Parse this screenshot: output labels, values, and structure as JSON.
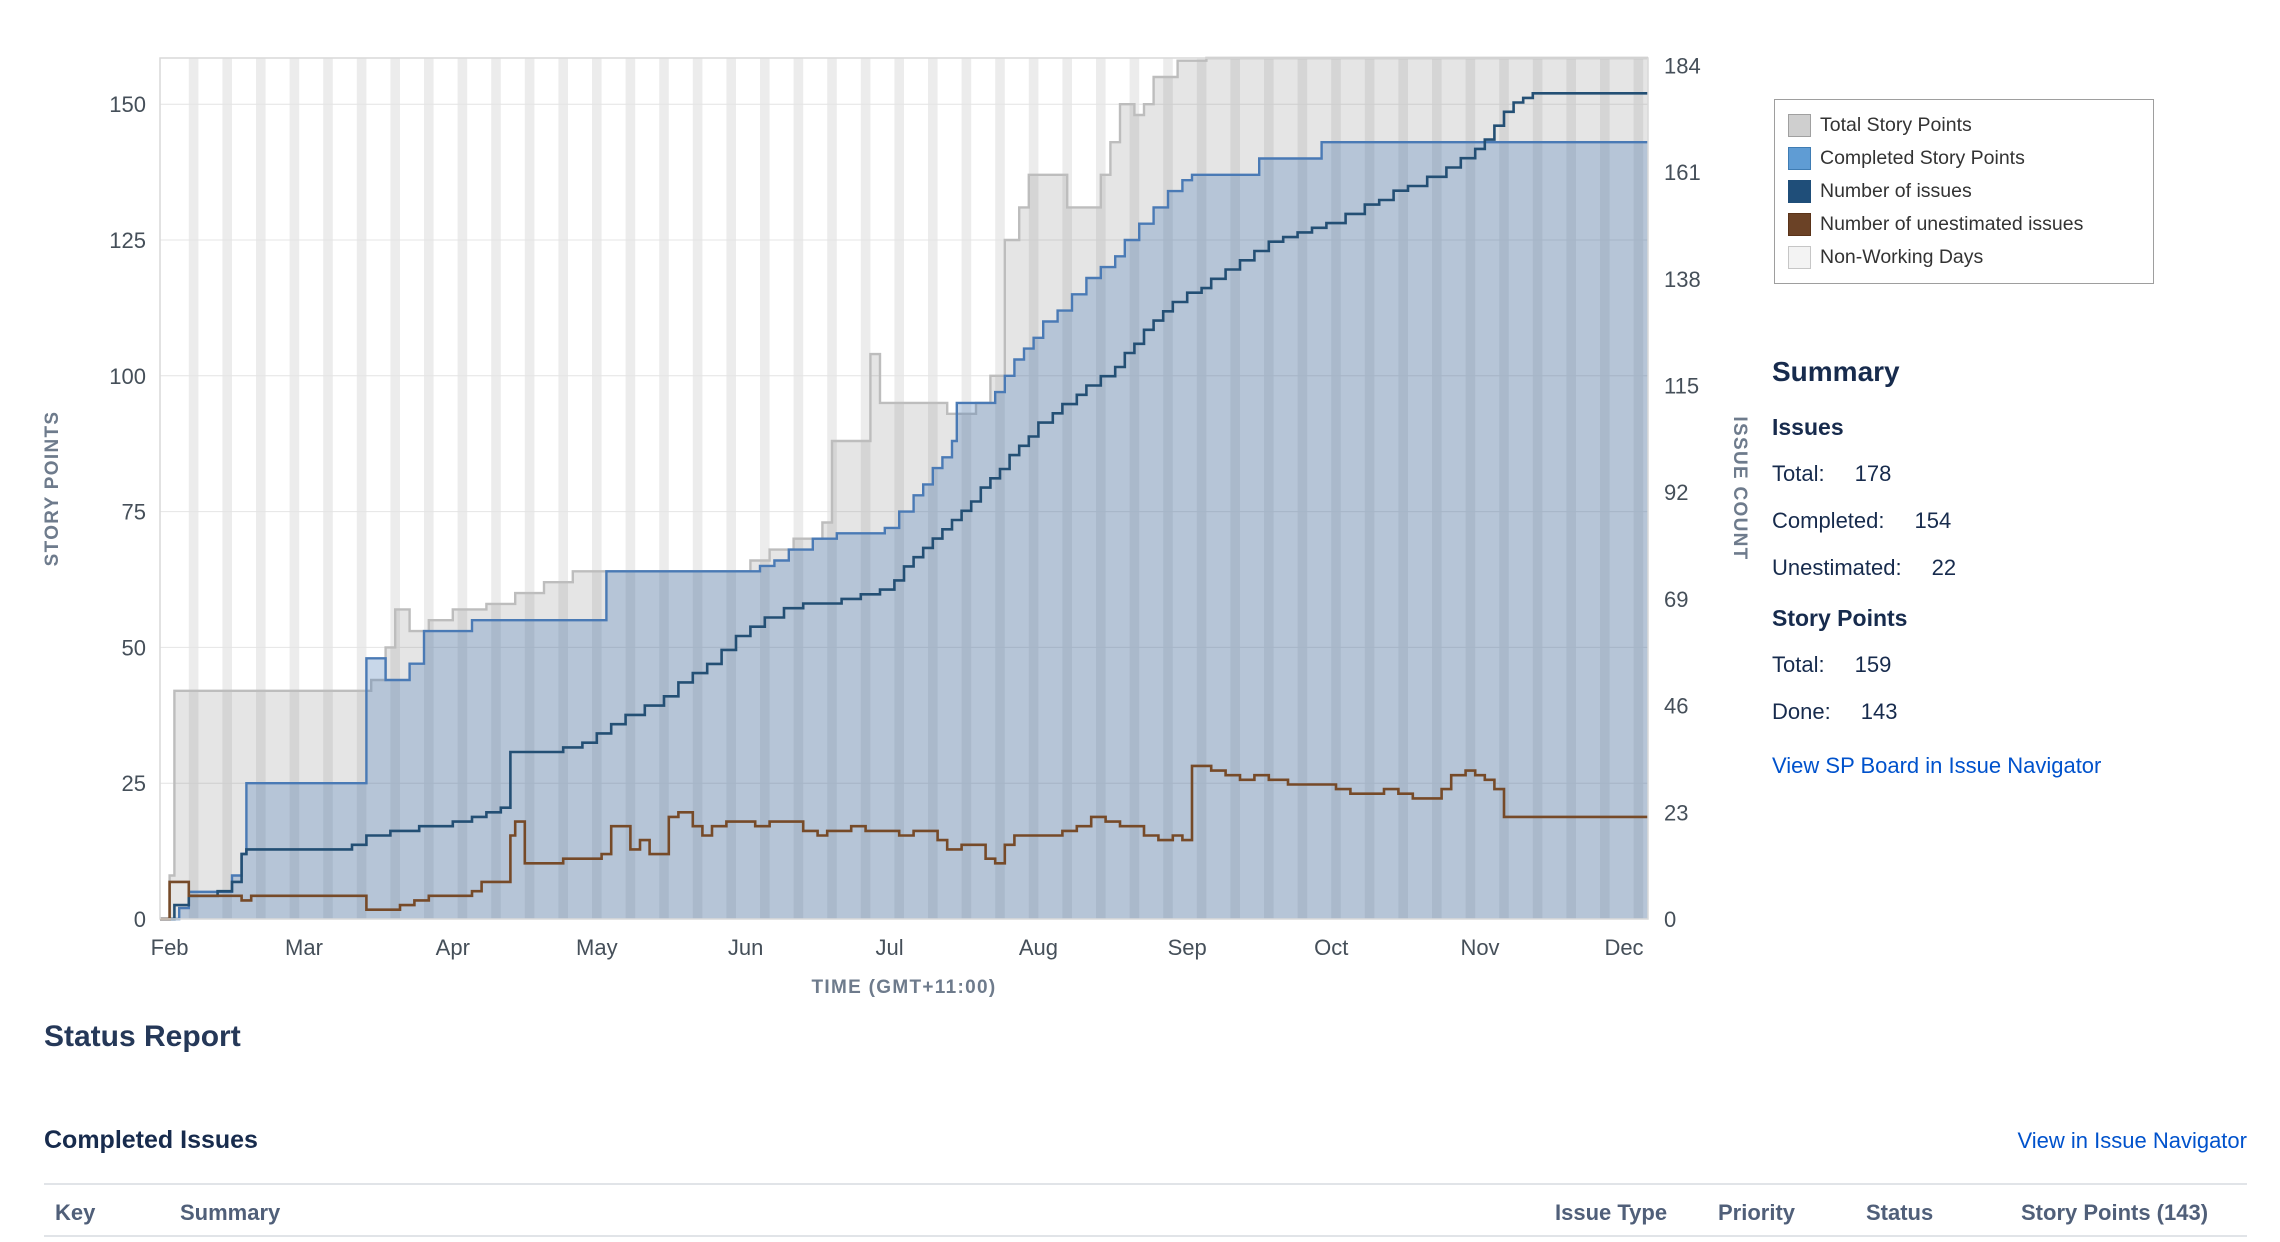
{
  "page": {
    "background": "#ffffff"
  },
  "legend": {
    "items": [
      {
        "label": "Total Story Points",
        "color": "#cfcfcf",
        "border": "#a0a0a0"
      },
      {
        "label": "Completed Story Points",
        "color": "#5f9cd4",
        "border": "#3f7cb3"
      },
      {
        "label": "Number of issues",
        "color": "#1f4e79",
        "border": "#1f4e79"
      },
      {
        "label": "Number of unestimated issues",
        "color": "#6b4226",
        "border": "#5a3319"
      },
      {
        "label": "Non-Working Days",
        "color": "#f3f3f3",
        "border": "#c6c6c6"
      }
    ]
  },
  "summary": {
    "title": "Summary",
    "issues": {
      "heading": "Issues",
      "rows": [
        {
          "label": "Total:",
          "value": "178"
        },
        {
          "label": "Completed:",
          "value": "154"
        },
        {
          "label": "Unestimated:",
          "value": "22"
        }
      ]
    },
    "story_points": {
      "heading": "Story Points",
      "rows": [
        {
          "label": "Total:",
          "value": "159"
        },
        {
          "label": "Done:",
          "value": "143"
        }
      ]
    },
    "link": "View SP Board in Issue Navigator"
  },
  "status_report": {
    "title": "Status Report"
  },
  "completed_issues": {
    "heading": "Completed Issues",
    "link": "View in Issue Navigator",
    "columns": [
      "Key",
      "Summary",
      "Issue Type",
      "Priority",
      "Status",
      "Story Points (143)"
    ]
  },
  "chart_data": {
    "type": "area",
    "title": "",
    "xlabel": "TIME (GMT+11:00)",
    "ylabel_left": "STORY POINTS",
    "ylabel_right": "ISSUE COUNT",
    "x_unit": "days_from_feb_1",
    "x_domain": [
      -2,
      308
    ],
    "y_left_domain": [
      0,
      158.5
    ],
    "y_right_domain": [
      0,
      185.6
    ],
    "y_left_ticks": [
      0,
      25,
      50,
      75,
      100,
      125,
      150
    ],
    "y_right_ticks": [
      0,
      23,
      46,
      69,
      92,
      115,
      138,
      161,
      184
    ],
    "x_ticks": [
      {
        "d": 0,
        "label": "Feb"
      },
      {
        "d": 28,
        "label": "Mar"
      },
      {
        "d": 59,
        "label": "Apr"
      },
      {
        "d": 89,
        "label": "May"
      },
      {
        "d": 120,
        "label": "Jun"
      },
      {
        "d": 150,
        "label": "Jul"
      },
      {
        "d": 181,
        "label": "Aug"
      },
      {
        "d": 212,
        "label": "Sep"
      },
      {
        "d": 242,
        "label": "Oct"
      },
      {
        "d": 273,
        "label": "Nov"
      },
      {
        "d": 303,
        "label": "Dec"
      }
    ],
    "grid": true,
    "legend_position": "top-right",
    "non_working_days": {
      "first_start": 4,
      "period": 7,
      "width": 2,
      "color": "#ececec"
    },
    "series": [
      {
        "name": "Total Story Points",
        "axis": "left",
        "style": "area",
        "color": "#bdbdbd",
        "fill": "rgba(110,110,110,0.18)",
        "points": [
          [
            -2,
            0
          ],
          [
            0,
            8
          ],
          [
            1,
            42
          ],
          [
            40,
            42
          ],
          [
            42,
            44
          ],
          [
            45,
            50
          ],
          [
            47,
            57
          ],
          [
            50,
            53
          ],
          [
            54,
            55
          ],
          [
            59,
            57
          ],
          [
            66,
            58
          ],
          [
            72,
            60
          ],
          [
            78,
            62
          ],
          [
            84,
            64
          ],
          [
            118,
            64
          ],
          [
            121,
            66
          ],
          [
            125,
            68
          ],
          [
            130,
            70
          ],
          [
            136,
            73
          ],
          [
            138,
            88
          ],
          [
            145,
            88
          ],
          [
            146,
            104
          ],
          [
            148,
            95
          ],
          [
            158,
            95
          ],
          [
            162,
            93
          ],
          [
            168,
            95
          ],
          [
            171,
            100
          ],
          [
            174,
            125
          ],
          [
            177,
            131
          ],
          [
            179,
            137
          ],
          [
            186,
            137
          ],
          [
            187,
            131
          ],
          [
            193,
            131
          ],
          [
            194,
            137
          ],
          [
            196,
            143
          ],
          [
            198,
            150
          ],
          [
            201,
            148
          ],
          [
            203,
            150
          ],
          [
            205,
            155
          ],
          [
            210,
            158
          ],
          [
            216,
            159
          ],
          [
            308,
            159
          ]
        ]
      },
      {
        "name": "Completed Story Points",
        "axis": "left",
        "style": "area",
        "color": "#4a7ab5",
        "fill": "rgba(74,122,181,0.30)",
        "points": [
          [
            -2,
            0
          ],
          [
            2,
            2
          ],
          [
            4,
            5
          ],
          [
            11,
            5
          ],
          [
            13,
            8
          ],
          [
            15,
            12
          ],
          [
            16,
            25
          ],
          [
            40,
            25
          ],
          [
            41,
            48
          ],
          [
            44,
            48
          ],
          [
            45,
            44
          ],
          [
            49,
            44
          ],
          [
            50,
            47
          ],
          [
            53,
            53
          ],
          [
            60,
            53
          ],
          [
            63,
            55
          ],
          [
            88,
            55
          ],
          [
            91,
            64
          ],
          [
            119,
            64
          ],
          [
            123,
            65
          ],
          [
            126,
            66
          ],
          [
            129,
            68
          ],
          [
            134,
            70
          ],
          [
            139,
            71
          ],
          [
            149,
            72
          ],
          [
            152,
            75
          ],
          [
            155,
            78
          ],
          [
            157,
            80
          ],
          [
            159,
            83
          ],
          [
            161,
            85
          ],
          [
            163,
            88
          ],
          [
            164,
            95
          ],
          [
            170,
            95
          ],
          [
            172,
            97
          ],
          [
            174,
            100
          ],
          [
            176,
            103
          ],
          [
            178,
            105
          ],
          [
            180,
            107
          ],
          [
            182,
            110
          ],
          [
            185,
            112
          ],
          [
            188,
            115
          ],
          [
            191,
            118
          ],
          [
            194,
            120
          ],
          [
            197,
            122
          ],
          [
            199,
            125
          ],
          [
            202,
            128
          ],
          [
            205,
            131
          ],
          [
            208,
            134
          ],
          [
            211,
            136
          ],
          [
            213,
            137
          ],
          [
            226,
            137
          ],
          [
            227,
            140
          ],
          [
            239,
            140
          ],
          [
            240,
            143
          ],
          [
            308,
            143
          ]
        ]
      },
      {
        "name": "Number of issues",
        "axis": "right",
        "style": "line",
        "color": "#234f74",
        "points": [
          [
            -2,
            0
          ],
          [
            1,
            3
          ],
          [
            4,
            5
          ],
          [
            10,
            6
          ],
          [
            13,
            8
          ],
          [
            15,
            14
          ],
          [
            16,
            15
          ],
          [
            38,
            16
          ],
          [
            41,
            18
          ],
          [
            46,
            19
          ],
          [
            52,
            20
          ],
          [
            59,
            21
          ],
          [
            63,
            22
          ],
          [
            66,
            23
          ],
          [
            69,
            24
          ],
          [
            71,
            36
          ],
          [
            79,
            36
          ],
          [
            82,
            37
          ],
          [
            86,
            38
          ],
          [
            89,
            40
          ],
          [
            92,
            42
          ],
          [
            95,
            44
          ],
          [
            99,
            46
          ],
          [
            103,
            48
          ],
          [
            106,
            51
          ],
          [
            109,
            53
          ],
          [
            112,
            55
          ],
          [
            115,
            58
          ],
          [
            118,
            61
          ],
          [
            121,
            63
          ],
          [
            124,
            65
          ],
          [
            128,
            67
          ],
          [
            132,
            68
          ],
          [
            140,
            69
          ],
          [
            144,
            70
          ],
          [
            148,
            71
          ],
          [
            151,
            73
          ],
          [
            153,
            76
          ],
          [
            155,
            78
          ],
          [
            157,
            80
          ],
          [
            159,
            82
          ],
          [
            161,
            84
          ],
          [
            163,
            86
          ],
          [
            165,
            88
          ],
          [
            167,
            90
          ],
          [
            169,
            93
          ],
          [
            171,
            95
          ],
          [
            173,
            97
          ],
          [
            175,
            100
          ],
          [
            177,
            102
          ],
          [
            179,
            104
          ],
          [
            181,
            107
          ],
          [
            184,
            109
          ],
          [
            186,
            111
          ],
          [
            189,
            113
          ],
          [
            191,
            115
          ],
          [
            194,
            117
          ],
          [
            197,
            119
          ],
          [
            199,
            122
          ],
          [
            201,
            124
          ],
          [
            203,
            127
          ],
          [
            205,
            129
          ],
          [
            207,
            131
          ],
          [
            209,
            133
          ],
          [
            212,
            135
          ],
          [
            215,
            136
          ],
          [
            217,
            138
          ],
          [
            220,
            140
          ],
          [
            223,
            142
          ],
          [
            226,
            144
          ],
          [
            229,
            146
          ],
          [
            232,
            147
          ],
          [
            235,
            148
          ],
          [
            238,
            149
          ],
          [
            241,
            150
          ],
          [
            245,
            152
          ],
          [
            249,
            154
          ],
          [
            252,
            155
          ],
          [
            255,
            157
          ],
          [
            258,
            158
          ],
          [
            262,
            160
          ],
          [
            266,
            162
          ],
          [
            269,
            164
          ],
          [
            272,
            166
          ],
          [
            274,
            168
          ],
          [
            276,
            171
          ],
          [
            278,
            174
          ],
          [
            280,
            176
          ],
          [
            282,
            177
          ],
          [
            284,
            178
          ],
          [
            308,
            178
          ]
        ]
      },
      {
        "name": "Number of unestimated issues",
        "axis": "right",
        "style": "line",
        "color": "#764a28",
        "points": [
          [
            -2,
            0
          ],
          [
            0,
            8
          ],
          [
            3,
            8
          ],
          [
            4,
            5
          ],
          [
            12,
            5
          ],
          [
            15,
            4
          ],
          [
            17,
            5
          ],
          [
            40,
            5
          ],
          [
            41,
            2
          ],
          [
            46,
            2
          ],
          [
            48,
            3
          ],
          [
            51,
            4
          ],
          [
            54,
            5
          ],
          [
            60,
            5
          ],
          [
            63,
            6
          ],
          [
            65,
            8
          ],
          [
            70,
            8
          ],
          [
            71,
            18
          ],
          [
            72,
            21
          ],
          [
            74,
            12
          ],
          [
            79,
            12
          ],
          [
            82,
            13
          ],
          [
            88,
            13
          ],
          [
            90,
            14
          ],
          [
            92,
            20
          ],
          [
            95,
            20
          ],
          [
            96,
            15
          ],
          [
            98,
            17
          ],
          [
            100,
            14
          ],
          [
            103,
            14
          ],
          [
            104,
            22
          ],
          [
            106,
            23
          ],
          [
            109,
            20
          ],
          [
            111,
            18
          ],
          [
            113,
            20
          ],
          [
            116,
            21
          ],
          [
            122,
            20
          ],
          [
            125,
            21
          ],
          [
            130,
            21
          ],
          [
            132,
            19
          ],
          [
            135,
            18
          ],
          [
            137,
            19
          ],
          [
            142,
            20
          ],
          [
            145,
            19
          ],
          [
            152,
            18
          ],
          [
            155,
            19
          ],
          [
            160,
            17
          ],
          [
            162,
            15
          ],
          [
            165,
            16
          ],
          [
            169,
            16
          ],
          [
            170,
            13
          ],
          [
            172,
            12
          ],
          [
            174,
            16
          ],
          [
            176,
            18
          ],
          [
            183,
            18
          ],
          [
            186,
            19
          ],
          [
            189,
            20
          ],
          [
            192,
            22
          ],
          [
            195,
            21
          ],
          [
            198,
            20
          ],
          [
            203,
            18
          ],
          [
            206,
            17
          ],
          [
            209,
            18
          ],
          [
            211,
            17
          ],
          [
            213,
            33
          ],
          [
            217,
            32
          ],
          [
            220,
            31
          ],
          [
            223,
            30
          ],
          [
            226,
            31
          ],
          [
            229,
            30
          ],
          [
            233,
            29
          ],
          [
            237,
            29
          ],
          [
            240,
            29
          ],
          [
            243,
            28
          ],
          [
            246,
            27
          ],
          [
            250,
            27
          ],
          [
            253,
            28
          ],
          [
            256,
            27
          ],
          [
            259,
            26
          ],
          [
            262,
            26
          ],
          [
            265,
            28
          ],
          [
            267,
            31
          ],
          [
            270,
            32
          ],
          [
            272,
            31
          ],
          [
            274,
            30
          ],
          [
            276,
            28
          ],
          [
            278,
            22
          ],
          [
            308,
            22
          ]
        ]
      }
    ]
  }
}
